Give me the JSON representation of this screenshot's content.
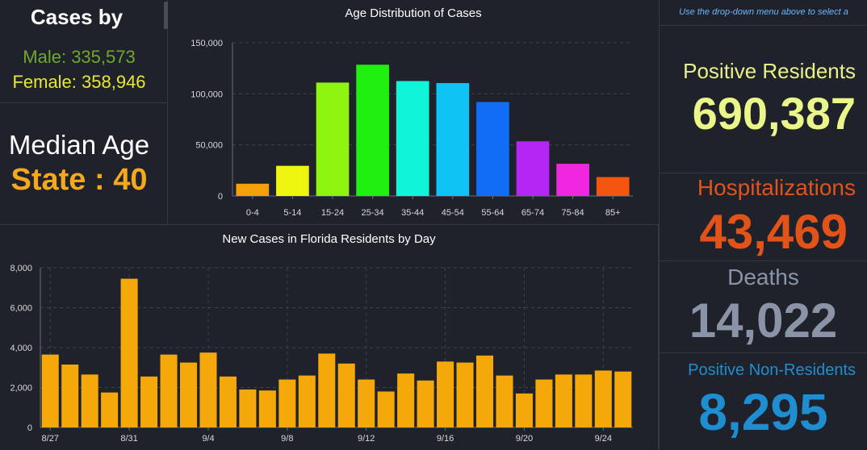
{
  "cases_panel": {
    "title": "Cases by",
    "male": "Male: 335,573",
    "female": "Female: 358,946",
    "colors": {
      "male": "#6fa82c",
      "female": "#e8e831"
    }
  },
  "median_panel": {
    "label": "Median Age",
    "value": "State : 40",
    "color": "#f5a81c"
  },
  "right_panel": {
    "note": "Use the drop-down menu above to select a",
    "stats": [
      {
        "label": "Positive Residents",
        "value": "690,387",
        "label_color": "#e8f08a",
        "value_color": "#eaf58a"
      },
      {
        "label": "Hospitalizations",
        "value": "43,469",
        "label_color": "#e2531a",
        "value_color": "#e2531a"
      },
      {
        "label": "Deaths",
        "value": "14,022",
        "label_color": "#8a94a6",
        "value_color": "#8a94a6"
      },
      {
        "label": "Positive Non-Residents",
        "value": "8,295",
        "label_color": "#1f8ed0",
        "value_color": "#1f8ed0"
      }
    ]
  },
  "chart_data": [
    {
      "type": "bar",
      "title": "Age Distribution of Cases",
      "xlabel": "",
      "ylabel": "",
      "categories": [
        "0-4",
        "5-14",
        "15-24",
        "25-34",
        "35-44",
        "45-54",
        "55-64",
        "65-74",
        "75-84",
        "85+"
      ],
      "values": [
        12000,
        29500,
        111000,
        128500,
        112500,
        110500,
        92000,
        53500,
        31500,
        18500
      ],
      "colors": [
        "#f5a00a",
        "#eef50f",
        "#8ef50f",
        "#1ff00f",
        "#0ff5d9",
        "#0fc4f5",
        "#0f6ef5",
        "#b526f5",
        "#f026e0",
        "#f5560f"
      ],
      "ylim": [
        0,
        150000
      ],
      "yticks": [
        0,
        50000,
        100000,
        150000
      ],
      "ytick_labels": [
        "0",
        "50,000",
        "100,000",
        "150,000"
      ],
      "grid": true
    },
    {
      "type": "bar",
      "title": "New Cases in Florida Residents by Day",
      "xlabel": "",
      "ylabel": "",
      "bar_color": "#f5a80a",
      "dates": [
        "8/27",
        "8/28",
        "8/29",
        "8/30",
        "8/31",
        "9/1",
        "9/2",
        "9/3",
        "9/4",
        "9/5",
        "9/6",
        "9/7",
        "9/8",
        "9/9",
        "9/10",
        "9/11",
        "9/12",
        "9/13",
        "9/14",
        "9/15",
        "9/16",
        "9/17",
        "9/18",
        "9/19",
        "9/20",
        "9/21",
        "9/22",
        "9/23",
        "9/24",
        "9/25"
      ],
      "values": [
        3650,
        3150,
        2650,
        1750,
        7450,
        2550,
        3650,
        3250,
        3750,
        2550,
        1900,
        1850,
        2400,
        2600,
        3700,
        3200,
        2400,
        1800,
        2700,
        2350,
        3300,
        3250,
        3600,
        2600,
        1700,
        2400,
        2650,
        2650,
        2850,
        2800
      ],
      "tick_labels": [
        "8/27",
        "8/31",
        "9/4",
        "9/8",
        "9/12",
        "9/16",
        "9/20",
        "9/24"
      ],
      "ylim": [
        0,
        8000
      ],
      "yticks": [
        0,
        2000,
        4000,
        6000,
        8000
      ],
      "ytick_labels": [
        "0",
        "2,000",
        "4,000",
        "6,000",
        "8,000"
      ],
      "grid": true
    }
  ]
}
